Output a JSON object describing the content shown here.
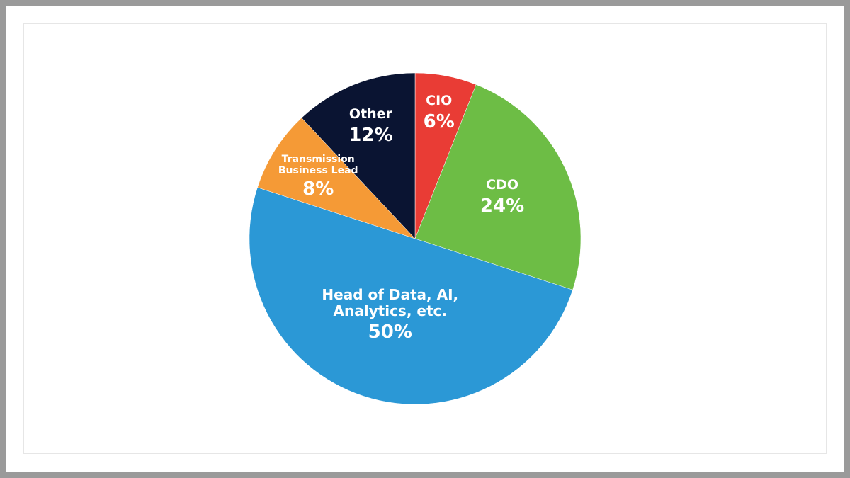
{
  "chart_data": {
    "type": "pie",
    "categories": [
      "CIO",
      "CDO",
      "Head of Data, AI, Analytics, etc.",
      "Transmission Business Lead",
      "Other"
    ],
    "values": [
      6,
      24,
      50,
      8,
      12
    ],
    "value_labels": [
      "6%",
      "24%",
      "50%",
      "8%",
      "12%"
    ],
    "colors": [
      "#e93c35",
      "#6dbd45",
      "#2b98d6",
      "#f59a36",
      "#0a1432"
    ]
  }
}
